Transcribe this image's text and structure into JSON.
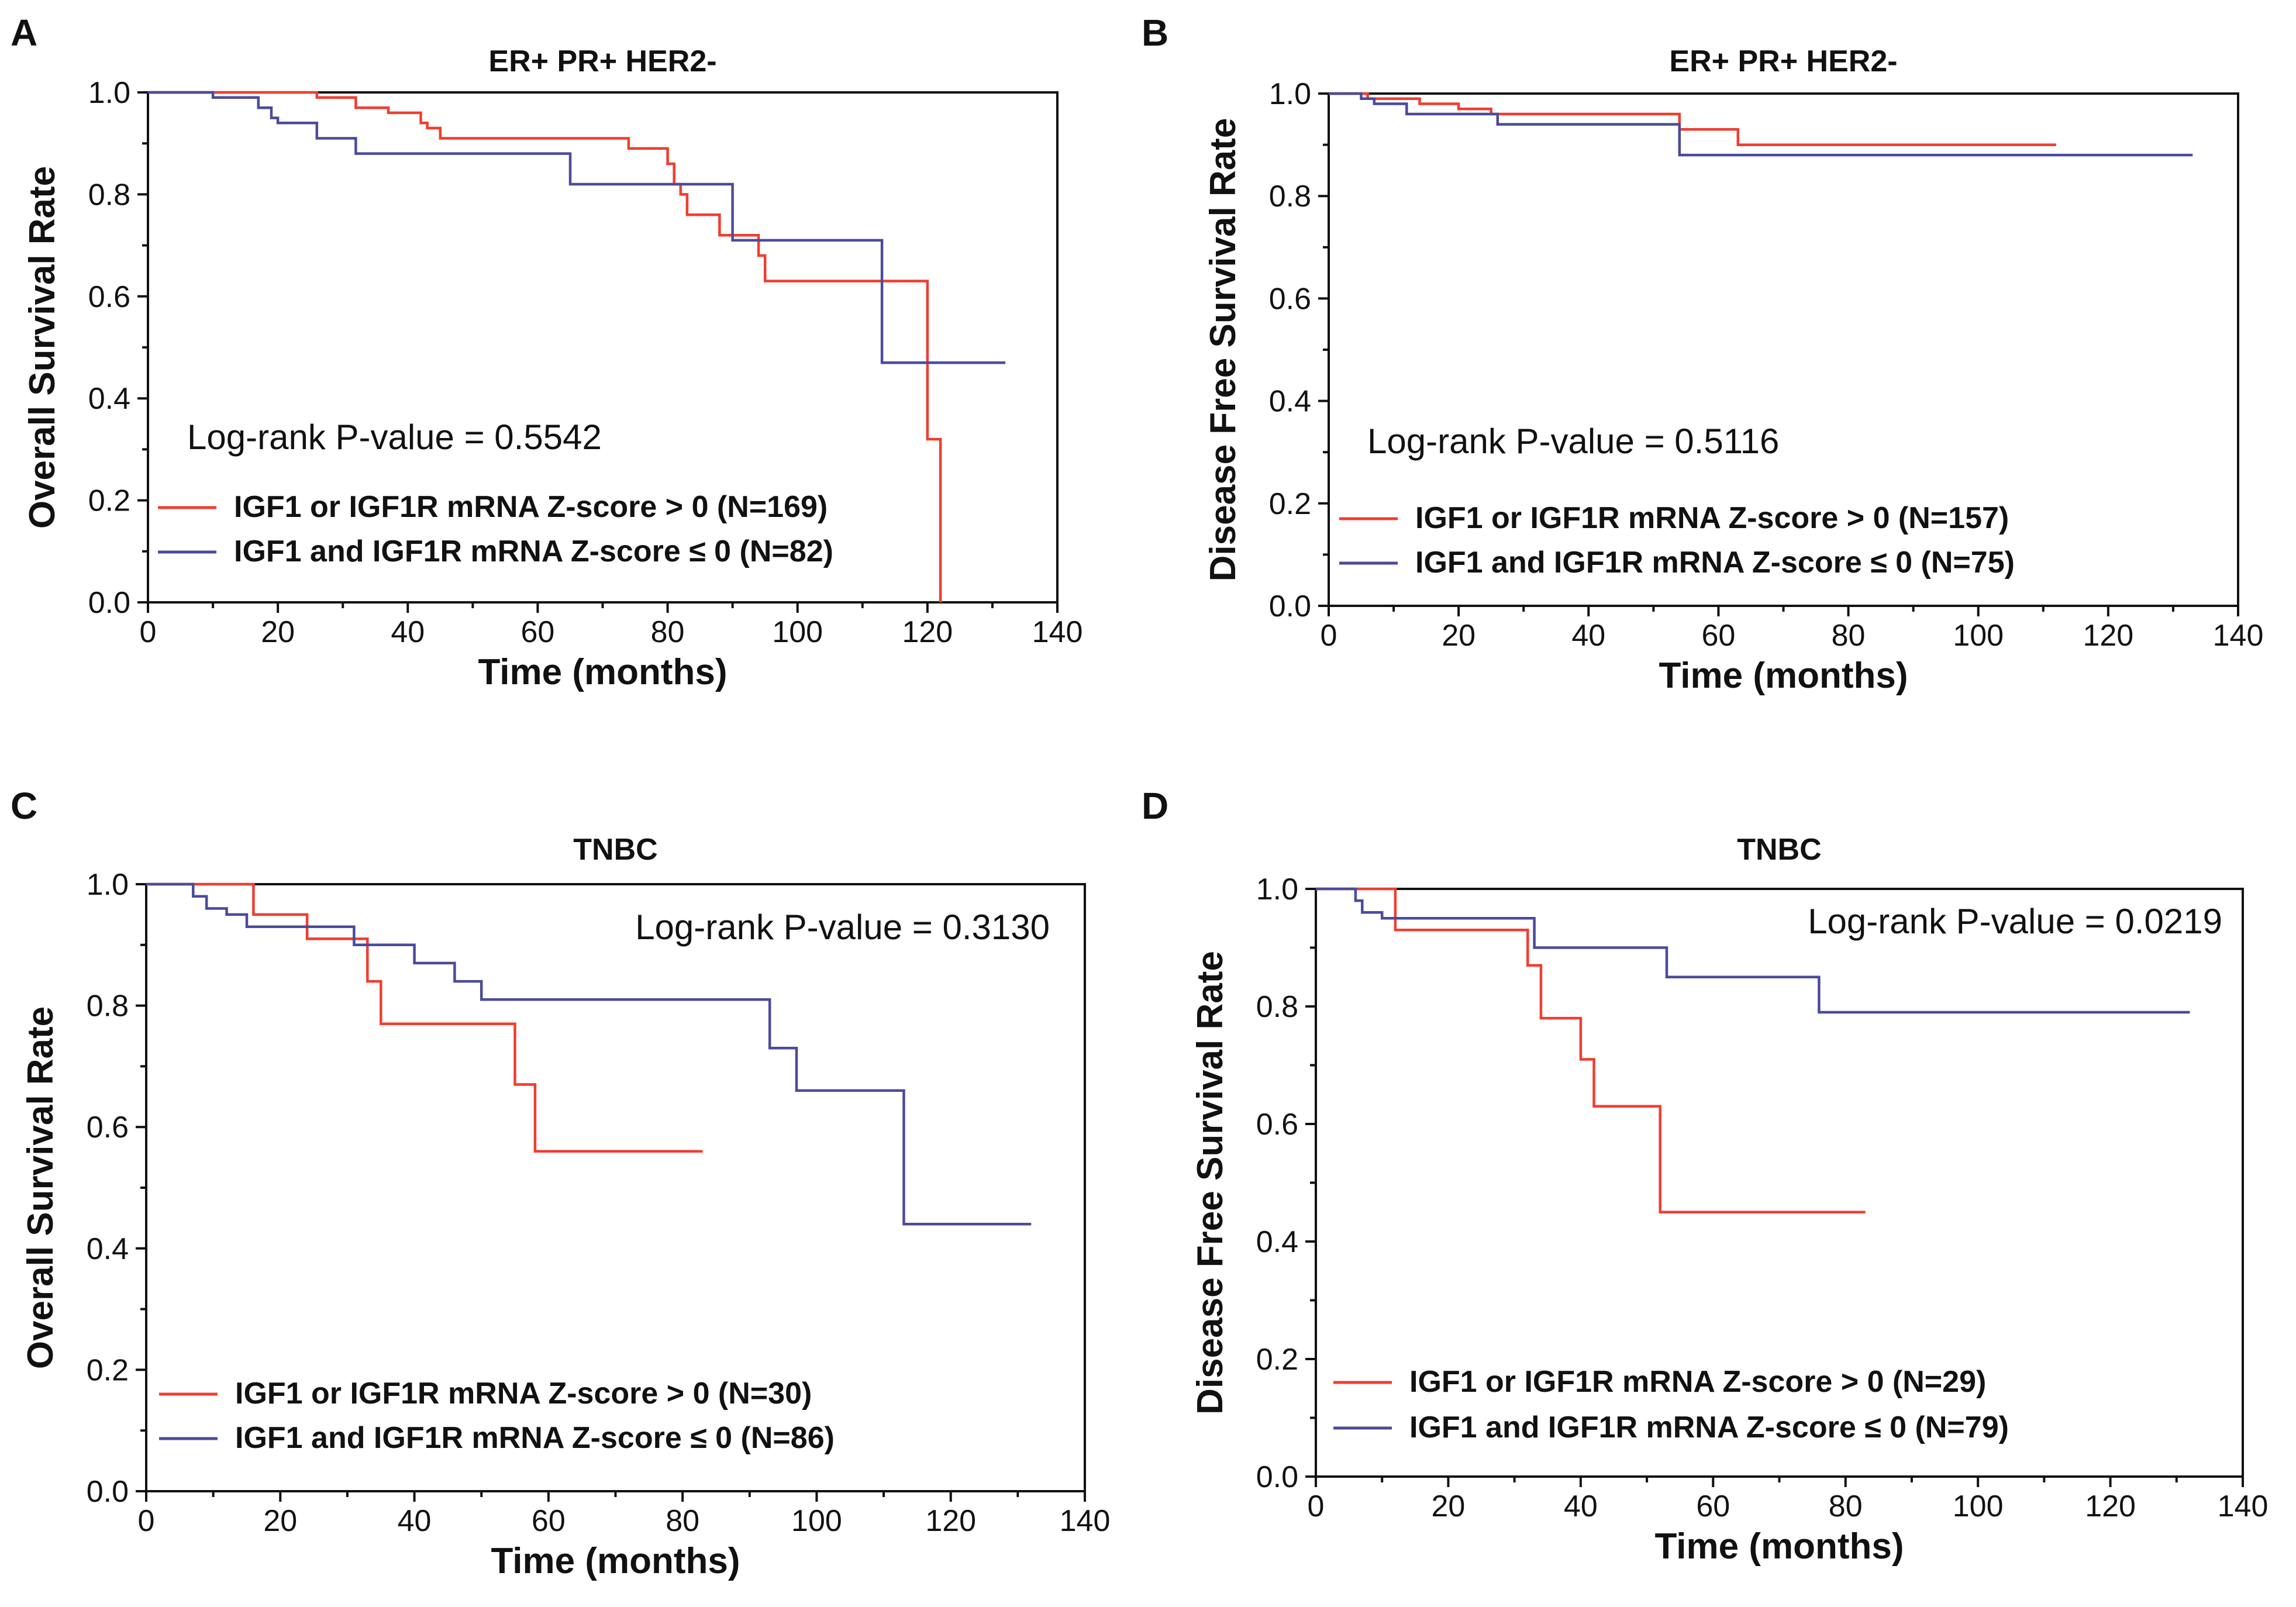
{
  "chart_data": [
    {
      "panel": "A",
      "type": "line",
      "step": true,
      "title": "ER+ PR+ HER2-",
      "xlabel": "Time (months)",
      "ylabel": "Overall Survival Rate",
      "xlim": [
        0,
        140
      ],
      "ylim": [
        0,
        1.0
      ],
      "xticks": [
        0,
        20,
        40,
        60,
        80,
        100,
        120,
        140
      ],
      "yticks": [
        0.0,
        0.2,
        0.4,
        0.6,
        0.8,
        1.0
      ],
      "annotation": "Log-rank P-value = 0.5542",
      "legend_position": "bottom-left",
      "series": [
        {
          "name": "IGF1 or IGF1R mRNA Z-score > 0 (N=169)",
          "color": "#f03e2f",
          "points": [
            [
              0,
              1.0
            ],
            [
              26,
              1.0
            ],
            [
              26,
              0.99
            ],
            [
              32,
              0.99
            ],
            [
              32,
              0.97
            ],
            [
              37,
              0.97
            ],
            [
              37,
              0.96
            ],
            [
              42,
              0.96
            ],
            [
              42,
              0.94
            ],
            [
              43,
              0.94
            ],
            [
              43,
              0.93
            ],
            [
              45,
              0.93
            ],
            [
              45,
              0.91
            ],
            [
              74,
              0.91
            ],
            [
              74,
              0.89
            ],
            [
              80,
              0.89
            ],
            [
              80,
              0.86
            ],
            [
              81,
              0.86
            ],
            [
              81,
              0.82
            ],
            [
              82,
              0.82
            ],
            [
              82,
              0.8
            ],
            [
              83,
              0.8
            ],
            [
              83,
              0.76
            ],
            [
              88,
              0.76
            ],
            [
              88,
              0.72
            ],
            [
              94,
              0.72
            ],
            [
              94,
              0.68
            ],
            [
              95,
              0.68
            ],
            [
              95,
              0.63
            ],
            [
              120,
              0.63
            ],
            [
              120,
              0.32
            ],
            [
              122,
              0.32
            ],
            [
              122,
              0.0
            ]
          ]
        },
        {
          "name": "IGF1 and IGF1R mRNA Z-score ≤ 0 (N=82)",
          "color": "#4b4b9b",
          "points": [
            [
              0,
              1.0
            ],
            [
              10,
              1.0
            ],
            [
              10,
              0.99
            ],
            [
              17,
              0.99
            ],
            [
              17,
              0.97
            ],
            [
              19,
              0.97
            ],
            [
              19,
              0.95
            ],
            [
              20,
              0.95
            ],
            [
              20,
              0.94
            ],
            [
              26,
              0.94
            ],
            [
              26,
              0.91
            ],
            [
              32,
              0.91
            ],
            [
              32,
              0.88
            ],
            [
              65,
              0.88
            ],
            [
              65,
              0.82
            ],
            [
              90,
              0.82
            ],
            [
              90,
              0.71
            ],
            [
              113,
              0.71
            ],
            [
              113,
              0.47
            ],
            [
              132,
              0.47
            ]
          ]
        }
      ]
    },
    {
      "panel": "B",
      "type": "line",
      "step": true,
      "title": "ER+ PR+ HER2-",
      "xlabel": "Time (months)",
      "ylabel": "Disease Free Survival Rate",
      "xlim": [
        0,
        140
      ],
      "ylim": [
        0,
        1.0
      ],
      "xticks": [
        0,
        20,
        40,
        60,
        80,
        100,
        120,
        140
      ],
      "yticks": [
        0.0,
        0.2,
        0.4,
        0.6,
        0.8,
        1.0
      ],
      "annotation": "Log-rank P-value = 0.5116",
      "legend_position": "bottom-left",
      "series": [
        {
          "name": "IGF1 or IGF1R mRNA Z-score > 0 (N=157)",
          "color": "#f03e2f",
          "points": [
            [
              0,
              1.0
            ],
            [
              6,
              1.0
            ],
            [
              6,
              0.99
            ],
            [
              14,
              0.99
            ],
            [
              14,
              0.98
            ],
            [
              20,
              0.98
            ],
            [
              20,
              0.97
            ],
            [
              25,
              0.97
            ],
            [
              25,
              0.96
            ],
            [
              54,
              0.96
            ],
            [
              54,
              0.93
            ],
            [
              63,
              0.93
            ],
            [
              63,
              0.9
            ],
            [
              112,
              0.9
            ]
          ]
        },
        {
          "name": "IGF1 and IGF1R mRNA Z-score ≤ 0 (N=75)",
          "color": "#4b4b9b",
          "points": [
            [
              0,
              1.0
            ],
            [
              5,
              1.0
            ],
            [
              5,
              0.99
            ],
            [
              7,
              0.99
            ],
            [
              7,
              0.98
            ],
            [
              12,
              0.98
            ],
            [
              12,
              0.96
            ],
            [
              26,
              0.96
            ],
            [
              26,
              0.94
            ],
            [
              54,
              0.94
            ],
            [
              54,
              0.88
            ],
            [
              133,
              0.88
            ]
          ]
        }
      ]
    },
    {
      "panel": "C",
      "type": "line",
      "step": true,
      "title": "TNBC",
      "xlabel": "Time (months)",
      "ylabel": "Overall Survival Rate",
      "xlim": [
        0,
        140
      ],
      "ylim": [
        0,
        1.0
      ],
      "xticks": [
        0,
        20,
        40,
        60,
        80,
        100,
        120,
        140
      ],
      "yticks": [
        0.0,
        0.2,
        0.4,
        0.6,
        0.8,
        1.0
      ],
      "annotation": "Log-rank P-value = 0.3130",
      "legend_position": "bottom-left",
      "series": [
        {
          "name": "IGF1 or IGF1R mRNA Z-score > 0 (N=30)",
          "color": "#f03e2f",
          "points": [
            [
              0,
              1.0
            ],
            [
              16,
              1.0
            ],
            [
              16,
              0.95
            ],
            [
              24,
              0.95
            ],
            [
              24,
              0.91
            ],
            [
              33,
              0.91
            ],
            [
              33,
              0.84
            ],
            [
              35,
              0.84
            ],
            [
              35,
              0.77
            ],
            [
              55,
              0.77
            ],
            [
              55,
              0.67
            ],
            [
              58,
              0.67
            ],
            [
              58,
              0.56
            ],
            [
              83,
              0.56
            ]
          ]
        },
        {
          "name": "IGF1 and IGF1R mRNA Z-score ≤ 0 (N=86)",
          "color": "#4b4b9b",
          "points": [
            [
              0,
              1.0
            ],
            [
              7,
              1.0
            ],
            [
              7,
              0.98
            ],
            [
              9,
              0.98
            ],
            [
              9,
              0.96
            ],
            [
              12,
              0.96
            ],
            [
              12,
              0.95
            ],
            [
              15,
              0.95
            ],
            [
              15,
              0.93
            ],
            [
              31,
              0.93
            ],
            [
              31,
              0.9
            ],
            [
              40,
              0.9
            ],
            [
              40,
              0.87
            ],
            [
              46,
              0.87
            ],
            [
              46,
              0.84
            ],
            [
              50,
              0.84
            ],
            [
              50,
              0.81
            ],
            [
              93,
              0.81
            ],
            [
              93,
              0.73
            ],
            [
              97,
              0.73
            ],
            [
              97,
              0.66
            ],
            [
              113,
              0.66
            ],
            [
              113,
              0.44
            ],
            [
              132,
              0.44
            ]
          ]
        }
      ]
    },
    {
      "panel": "D",
      "type": "line",
      "step": true,
      "title": "TNBC",
      "xlabel": "Time (months)",
      "ylabel": "Disease Free Survival Rate",
      "xlim": [
        0,
        140
      ],
      "ylim": [
        0,
        1.0
      ],
      "xticks": [
        0,
        20,
        40,
        60,
        80,
        100,
        120,
        140
      ],
      "yticks": [
        0.0,
        0.2,
        0.4,
        0.6,
        0.8,
        1.0
      ],
      "annotation": "Log-rank P-value = 0.0219",
      "legend_position": "bottom-left",
      "series": [
        {
          "name": "IGF1 or IGF1R mRNA Z-score > 0 (N=29)",
          "color": "#f03e2f",
          "points": [
            [
              0,
              1.0
            ],
            [
              12,
              1.0
            ],
            [
              12,
              0.93
            ],
            [
              32,
              0.93
            ],
            [
              32,
              0.87
            ],
            [
              34,
              0.87
            ],
            [
              34,
              0.78
            ],
            [
              40,
              0.78
            ],
            [
              40,
              0.71
            ],
            [
              42,
              0.71
            ],
            [
              42,
              0.63
            ],
            [
              52,
              0.63
            ],
            [
              52,
              0.45
            ],
            [
              83,
              0.45
            ]
          ]
        },
        {
          "name": "IGF1 and IGF1R mRNA Z-score ≤ 0 (N=79)",
          "color": "#4b4b9b",
          "points": [
            [
              0,
              1.0
            ],
            [
              6,
              1.0
            ],
            [
              6,
              0.98
            ],
            [
              7,
              0.98
            ],
            [
              7,
              0.96
            ],
            [
              10,
              0.96
            ],
            [
              10,
              0.95
            ],
            [
              33,
              0.95
            ],
            [
              33,
              0.9
            ],
            [
              53,
              0.9
            ],
            [
              53,
              0.85
            ],
            [
              76,
              0.85
            ],
            [
              76,
              0.79
            ],
            [
              132,
              0.79
            ]
          ]
        }
      ]
    }
  ]
}
